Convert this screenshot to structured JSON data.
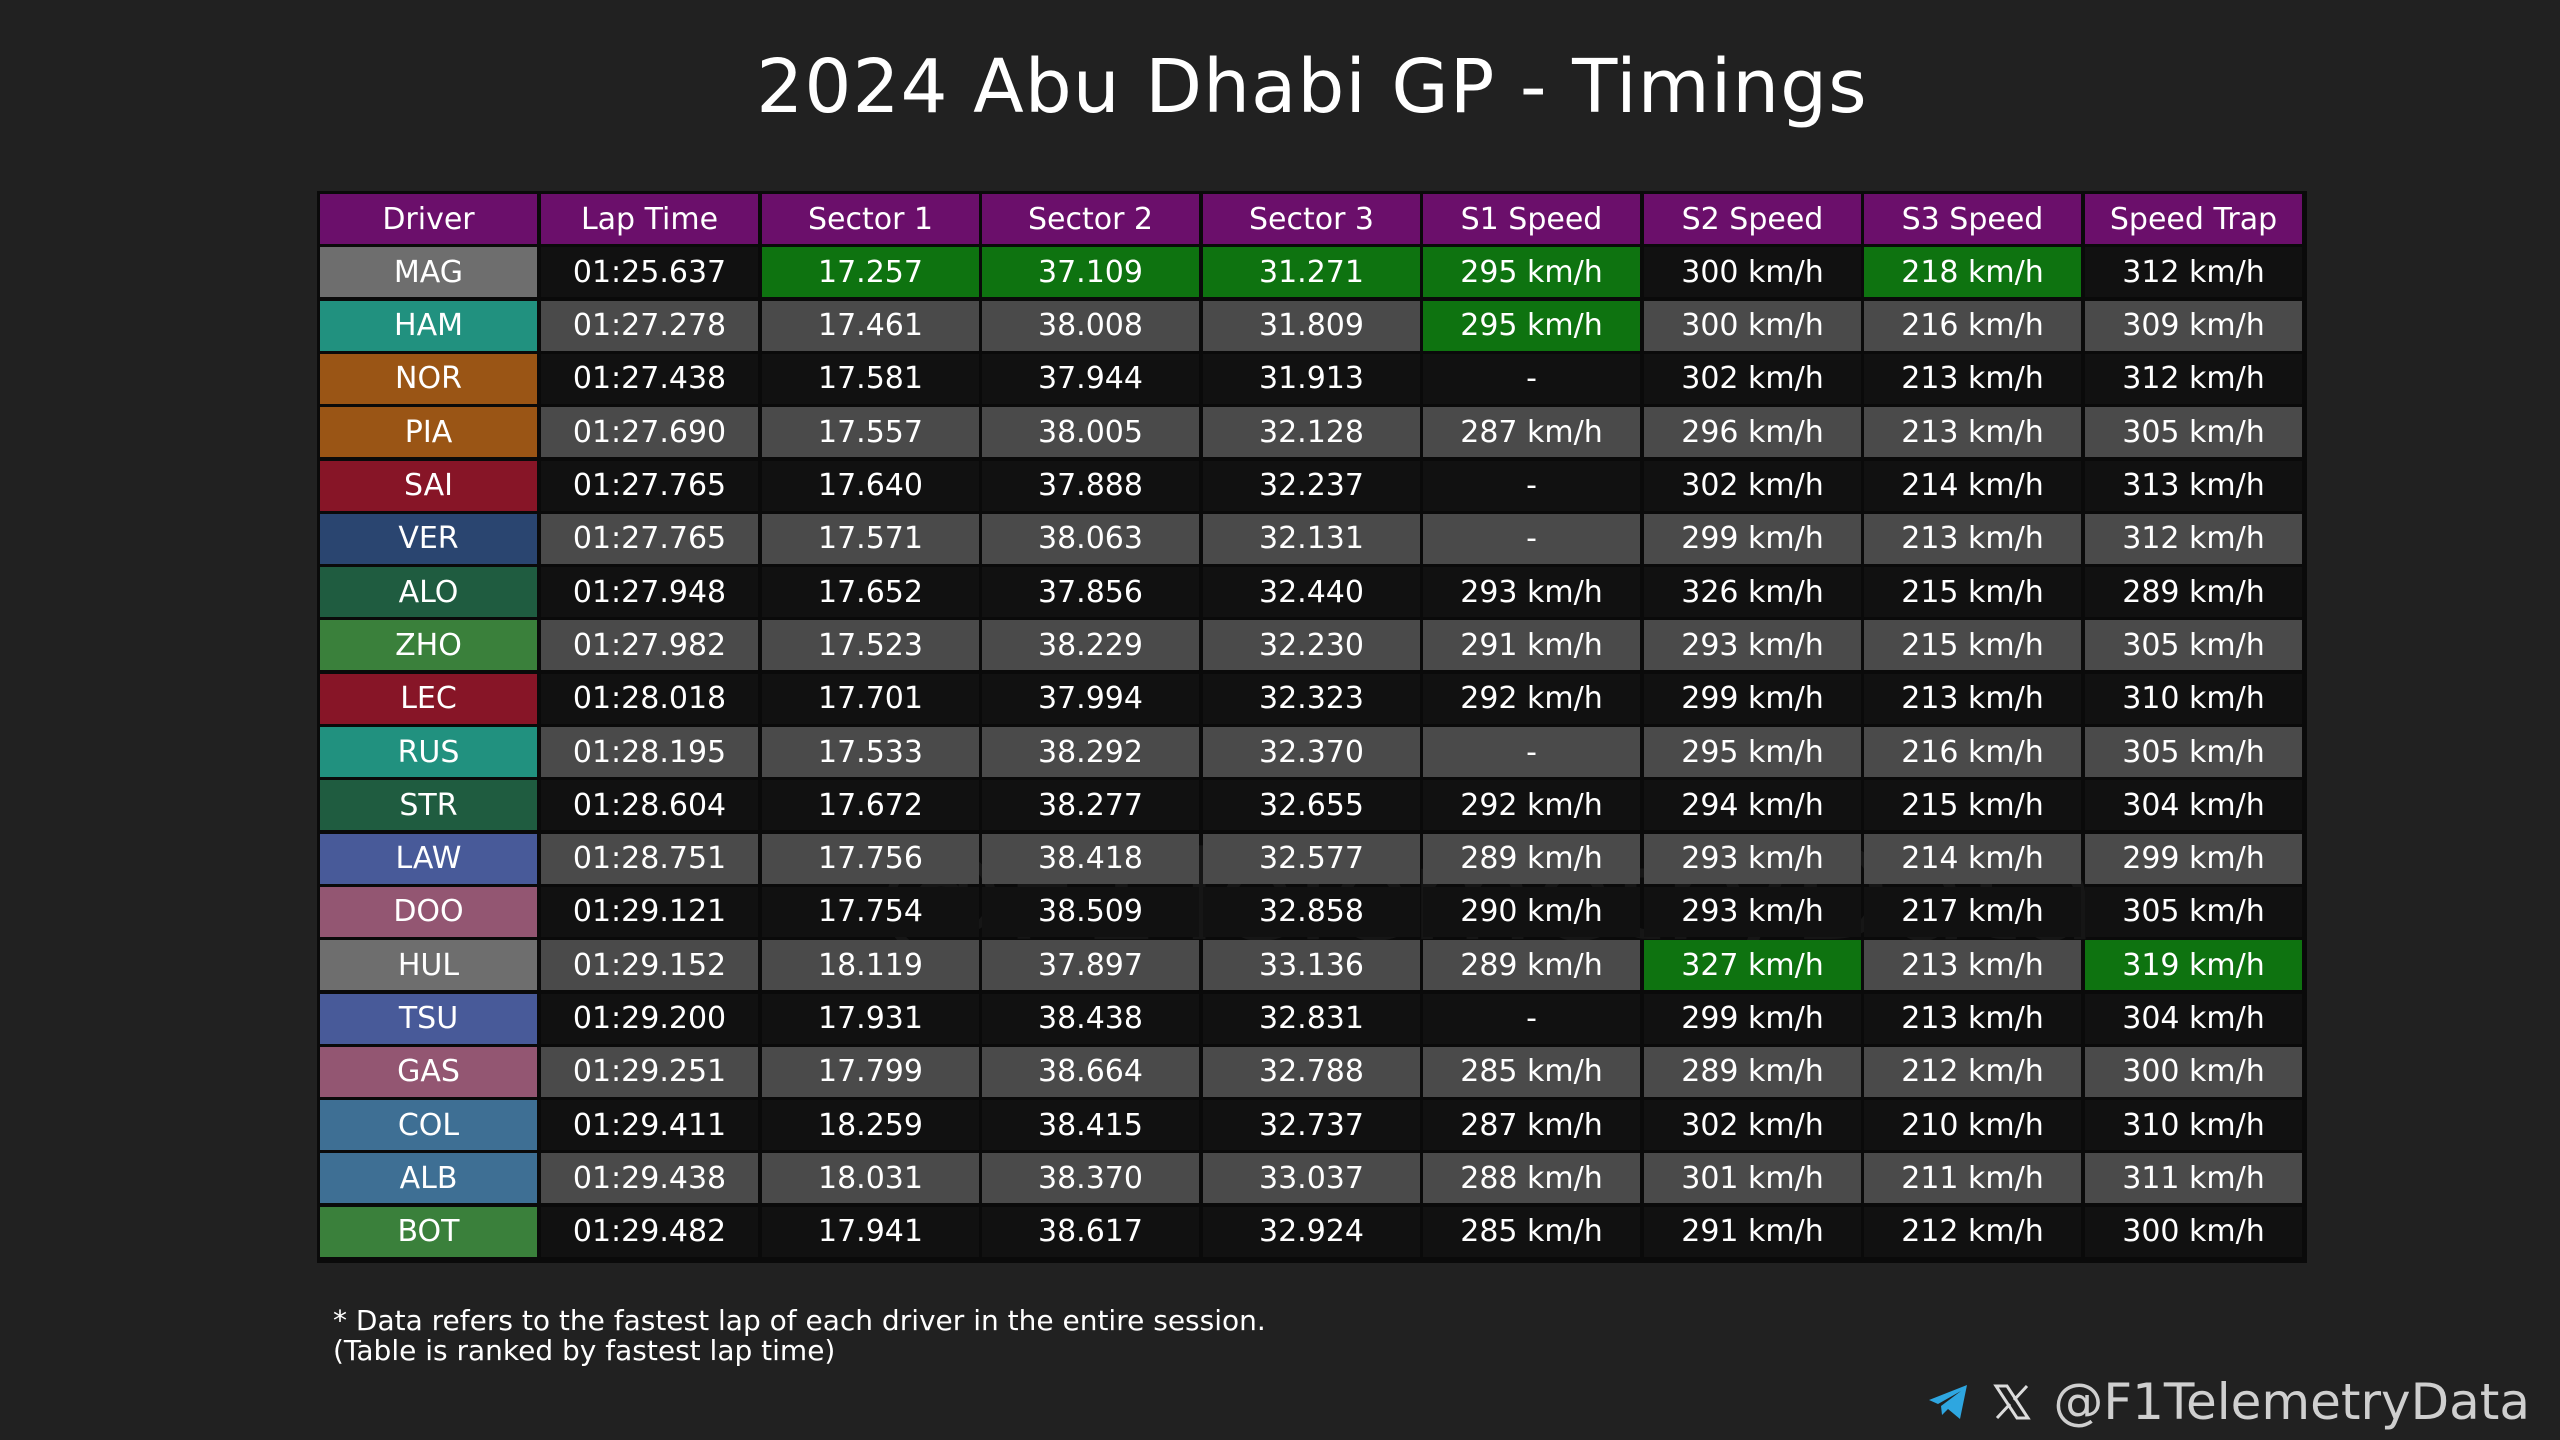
{
  "title": "2024 Abu Dhabi GP - Timings",
  "watermark": "@F1TelemetryData",
  "chart_data": {
    "type": "table",
    "title": "2024 Abu Dhabi GP - Timings",
    "columns": [
      "Driver",
      "Lap Time",
      "Sector 1",
      "Sector 2",
      "Sector 3",
      "S1 Speed",
      "S2 Speed",
      "S3 Speed",
      "Speed Trap"
    ],
    "rows": [
      [
        "MAG",
        "01:25.637",
        "17.257",
        "37.109",
        "31.271",
        "295 km/h",
        "300 km/h",
        "218 km/h",
        "312 km/h"
      ],
      [
        "HAM",
        "01:27.278",
        "17.461",
        "38.008",
        "31.809",
        "295 km/h",
        "300 km/h",
        "216 km/h",
        "309 km/h"
      ],
      [
        "NOR",
        "01:27.438",
        "17.581",
        "37.944",
        "31.913",
        "-",
        "302 km/h",
        "213 km/h",
        "312 km/h"
      ],
      [
        "PIA",
        "01:27.690",
        "17.557",
        "38.005",
        "32.128",
        "287 km/h",
        "296 km/h",
        "213 km/h",
        "305 km/h"
      ],
      [
        "SAI",
        "01:27.765",
        "17.640",
        "37.888",
        "32.237",
        "-",
        "302 km/h",
        "214 km/h",
        "313 km/h"
      ],
      [
        "VER",
        "01:27.765",
        "17.571",
        "38.063",
        "32.131",
        "-",
        "299 km/h",
        "213 km/h",
        "312 km/h"
      ],
      [
        "ALO",
        "01:27.948",
        "17.652",
        "37.856",
        "32.440",
        "293 km/h",
        "326 km/h",
        "215 km/h",
        "289 km/h"
      ],
      [
        "ZHO",
        "01:27.982",
        "17.523",
        "38.229",
        "32.230",
        "291 km/h",
        "293 km/h",
        "215 km/h",
        "305 km/h"
      ],
      [
        "LEC",
        "01:28.018",
        "17.701",
        "37.994",
        "32.323",
        "292 km/h",
        "299 km/h",
        "213 km/h",
        "310 km/h"
      ],
      [
        "RUS",
        "01:28.195",
        "17.533",
        "38.292",
        "32.370",
        "-",
        "295 km/h",
        "216 km/h",
        "305 km/h"
      ],
      [
        "STR",
        "01:28.604",
        "17.672",
        "38.277",
        "32.655",
        "292 km/h",
        "294 km/h",
        "215 km/h",
        "304 km/h"
      ],
      [
        "LAW",
        "01:28.751",
        "17.756",
        "38.418",
        "32.577",
        "289 km/h",
        "293 km/h",
        "214 km/h",
        "299 km/h"
      ],
      [
        "DOO",
        "01:29.121",
        "17.754",
        "38.509",
        "32.858",
        "290 km/h",
        "293 km/h",
        "217 km/h",
        "305 km/h"
      ],
      [
        "HUL",
        "01:29.152",
        "18.119",
        "37.897",
        "33.136",
        "289 km/h",
        "327 km/h",
        "213 km/h",
        "319 km/h"
      ],
      [
        "TSU",
        "01:29.200",
        "17.931",
        "38.438",
        "32.831",
        "-",
        "299 km/h",
        "213 km/h",
        "304 km/h"
      ],
      [
        "GAS",
        "01:29.251",
        "17.799",
        "38.664",
        "32.788",
        "285 km/h",
        "289 km/h",
        "212 km/h",
        "300 km/h"
      ],
      [
        "COL",
        "01:29.411",
        "18.259",
        "38.415",
        "32.737",
        "287 km/h",
        "302 km/h",
        "210 km/h",
        "310 km/h"
      ],
      [
        "ALB",
        "01:29.438",
        "18.031",
        "38.370",
        "33.037",
        "288 km/h",
        "301 km/h",
        "211 km/h",
        "311 km/h"
      ],
      [
        "BOT",
        "01:29.482",
        "17.941",
        "38.617",
        "32.924",
        "285 km/h",
        "291 km/h",
        "212 km/h",
        "300 km/h"
      ]
    ],
    "team_colors": {
      "MAG": "#6e6e6e",
      "HUL": "#6e6e6e",
      "HAM": "#21917f",
      "RUS": "#21917f",
      "NOR": "#9a5515",
      "PIA": "#9a5515",
      "SAI": "#871527",
      "LEC": "#871527",
      "VER": "#2a4570",
      "ALO": "#1f5c40",
      "STR": "#1f5c40",
      "ZHO": "#3a803b",
      "BOT": "#3a803b",
      "LAW": "#485a99",
      "TSU": "#485a99",
      "DOO": "#935672",
      "GAS": "#935672",
      "COL": "#3e6f94",
      "ALB": "#3e6f94"
    },
    "highlight_best": [
      {
        "row": 0,
        "col": 2
      },
      {
        "row": 0,
        "col": 3
      },
      {
        "row": 0,
        "col": 4
      },
      {
        "row": 0,
        "col": 5
      },
      {
        "row": 1,
        "col": 5
      },
      {
        "row": 0,
        "col": 7
      },
      {
        "row": 13,
        "col": 6
      },
      {
        "row": 13,
        "col": 8
      }
    ],
    "colors": {
      "header": "#6b0f6b",
      "row_dark": "#111111",
      "row_light": "#4a4a4a",
      "best": "#0e7310"
    }
  },
  "footnote": {
    "line1": "* Data refers to the fastest lap of each driver in the entire session.",
    "line2": "(Table is ranked by fastest lap time)"
  },
  "social": {
    "icons": [
      "telegram-icon",
      "x-icon"
    ],
    "handle": "@F1TelemetryData"
  }
}
